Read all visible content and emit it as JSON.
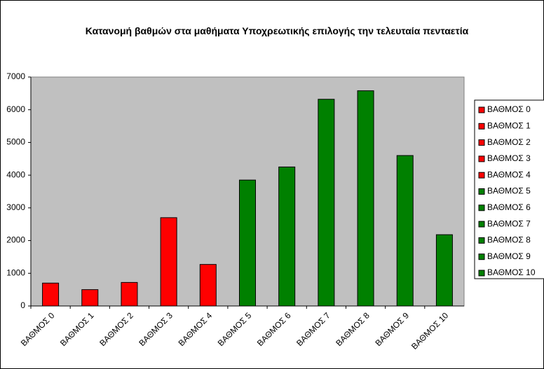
{
  "chart_data": {
    "type": "bar",
    "title": "Κατανομή βαθμών στα μαθήματα Υποχρεωτικής επιλογής την τελευταία πενταετία",
    "categories": [
      "ΒΑΘΜΟΣ 0",
      "ΒΑΘΜΟΣ 1",
      "ΒΑΘΜΟΣ 2",
      "ΒΑΘΜΟΣ 3",
      "ΒΑΘΜΟΣ 4",
      "ΒΑΘΜΟΣ 5",
      "ΒΑΘΜΟΣ 6",
      "ΒΑΘΜΟΣ 7",
      "ΒΑΘΜΟΣ 8",
      "ΒΑΘΜΟΣ 9",
      "ΒΑΘΜΟΣ 10"
    ],
    "values": [
      700,
      500,
      720,
      2700,
      1270,
      3850,
      4250,
      6320,
      6580,
      4600,
      2180
    ],
    "colors": [
      "#ff0000",
      "#ff0000",
      "#ff0000",
      "#ff0000",
      "#ff0000",
      "#008000",
      "#008000",
      "#008000",
      "#008000",
      "#008000",
      "#008000"
    ],
    "ylim": [
      0,
      7000
    ],
    "yticks": [
      0,
      1000,
      2000,
      3000,
      4000,
      5000,
      6000,
      7000
    ],
    "legend": "right"
  }
}
